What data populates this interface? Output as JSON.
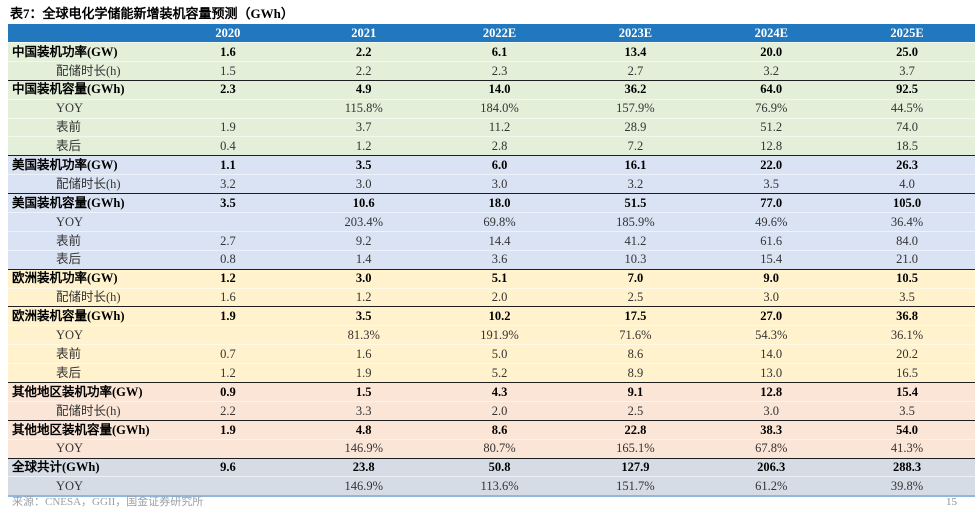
{
  "title": "表7：全球电化学储能新增装机容量预测（GWh）",
  "colors": {
    "header_bg": "#2278BE",
    "divider_line": "#1f1f1f",
    "bottom_border": "#8FB8DF"
  },
  "table": {
    "label_column_header": "",
    "columns": [
      "2020",
      "2021",
      "2022E",
      "2023E",
      "2024E",
      "2025E"
    ],
    "sections": [
      {
        "id": "china",
        "bg": "#E3EFD9",
        "rows": [
          {
            "label": "中国装机功率(GW)",
            "style": "main",
            "divider": false,
            "values": [
              "1.6",
              "2.2",
              "6.1",
              "13.4",
              "20.0",
              "25.0"
            ]
          },
          {
            "label": "配储时长(h)",
            "style": "sub",
            "divider": false,
            "values": [
              "1.5",
              "2.2",
              "2.3",
              "2.7",
              "3.2",
              "3.7"
            ]
          },
          {
            "label": "中国装机容量(GWh)",
            "style": "main",
            "divider": true,
            "values": [
              "2.3",
              "4.9",
              "14.0",
              "36.2",
              "64.0",
              "92.5"
            ]
          },
          {
            "label": "YOY",
            "style": "sub",
            "divider": false,
            "values": [
              "",
              "115.8%",
              "184.0%",
              "157.9%",
              "76.9%",
              "44.5%"
            ]
          },
          {
            "label": "表前",
            "style": "sub",
            "divider": false,
            "values": [
              "1.9",
              "3.7",
              "11.2",
              "28.9",
              "51.2",
              "74.0"
            ]
          },
          {
            "label": "表后",
            "style": "sub",
            "divider": false,
            "values": [
              "0.4",
              "1.2",
              "2.8",
              "7.2",
              "12.8",
              "18.5"
            ]
          }
        ]
      },
      {
        "id": "us",
        "bg": "#DAE3F3",
        "rows": [
          {
            "label": "美国装机功率(GW)",
            "style": "main",
            "divider": true,
            "values": [
              "1.1",
              "3.5",
              "6.0",
              "16.1",
              "22.0",
              "26.3"
            ]
          },
          {
            "label": "配储时长(h)",
            "style": "sub",
            "divider": false,
            "values": [
              "3.2",
              "3.0",
              "3.0",
              "3.2",
              "3.5",
              "4.0"
            ]
          },
          {
            "label": "美国装机容量(GWh)",
            "style": "main",
            "divider": true,
            "values": [
              "3.5",
              "10.6",
              "18.0",
              "51.5",
              "77.0",
              "105.0"
            ]
          },
          {
            "label": "YOY",
            "style": "sub",
            "divider": false,
            "values": [
              "",
              "203.4%",
              "69.8%",
              "185.9%",
              "49.6%",
              "36.4%"
            ]
          },
          {
            "label": "表前",
            "style": "sub",
            "divider": false,
            "values": [
              "2.7",
              "9.2",
              "14.4",
              "41.2",
              "61.6",
              "84.0"
            ]
          },
          {
            "label": "表后",
            "style": "sub",
            "divider": false,
            "values": [
              "0.8",
              "1.4",
              "3.6",
              "10.3",
              "15.4",
              "21.0"
            ]
          }
        ]
      },
      {
        "id": "europe",
        "bg": "#FFF2CC",
        "rows": [
          {
            "label": "欧洲装机功率(GW)",
            "style": "main",
            "divider": true,
            "values": [
              "1.2",
              "3.0",
              "5.1",
              "7.0",
              "9.0",
              "10.5"
            ]
          },
          {
            "label": "配储时长(h)",
            "style": "sub",
            "divider": false,
            "values": [
              "1.6",
              "1.2",
              "2.0",
              "2.5",
              "3.0",
              "3.5"
            ]
          },
          {
            "label": "欧洲装机容量(GWh)",
            "style": "main",
            "divider": true,
            "values": [
              "1.9",
              "3.5",
              "10.2",
              "17.5",
              "27.0",
              "36.8"
            ]
          },
          {
            "label": "YOY",
            "style": "sub",
            "divider": false,
            "values": [
              "",
              "81.3%",
              "191.9%",
              "71.6%",
              "54.3%",
              "36.1%"
            ]
          },
          {
            "label": "表前",
            "style": "sub",
            "divider": false,
            "values": [
              "0.7",
              "1.6",
              "5.0",
              "8.6",
              "14.0",
              "20.2"
            ]
          },
          {
            "label": "表后",
            "style": "sub",
            "divider": false,
            "values": [
              "1.2",
              "1.9",
              "5.2",
              "8.9",
              "13.0",
              "16.5"
            ]
          }
        ]
      },
      {
        "id": "other",
        "bg": "#FBE5D6",
        "rows": [
          {
            "label": "其他地区装机功率(GW)",
            "style": "main",
            "divider": true,
            "values": [
              "0.9",
              "1.5",
              "4.3",
              "9.1",
              "12.8",
              "15.4"
            ]
          },
          {
            "label": "配储时长(h)",
            "style": "sub",
            "divider": false,
            "values": [
              "2.2",
              "3.3",
              "2.0",
              "2.5",
              "3.0",
              "3.5"
            ]
          },
          {
            "label": "其他地区装机容量(GWh)",
            "style": "main",
            "divider": true,
            "values": [
              "1.9",
              "4.8",
              "8.6",
              "22.8",
              "38.3",
              "54.0"
            ]
          },
          {
            "label": "YOY",
            "style": "sub",
            "divider": false,
            "values": [
              "",
              "146.9%",
              "80.7%",
              "165.1%",
              "67.8%",
              "41.3%"
            ]
          }
        ]
      },
      {
        "id": "global",
        "bg": "#D6DCE5",
        "rows": [
          {
            "label": "全球共计(GWh)",
            "style": "main",
            "divider": true,
            "values": [
              "9.6",
              "23.8",
              "50.8",
              "127.9",
              "206.3",
              "288.3"
            ]
          },
          {
            "label": "YOY",
            "style": "sub",
            "divider": false,
            "values": [
              "",
              "146.9%",
              "113.6%",
              "151.7%",
              "61.2%",
              "39.8%"
            ]
          }
        ]
      }
    ]
  },
  "footer": {
    "source_cropped": "来源：CNESA，GGII，国金证券研究所",
    "page_number": "15"
  }
}
